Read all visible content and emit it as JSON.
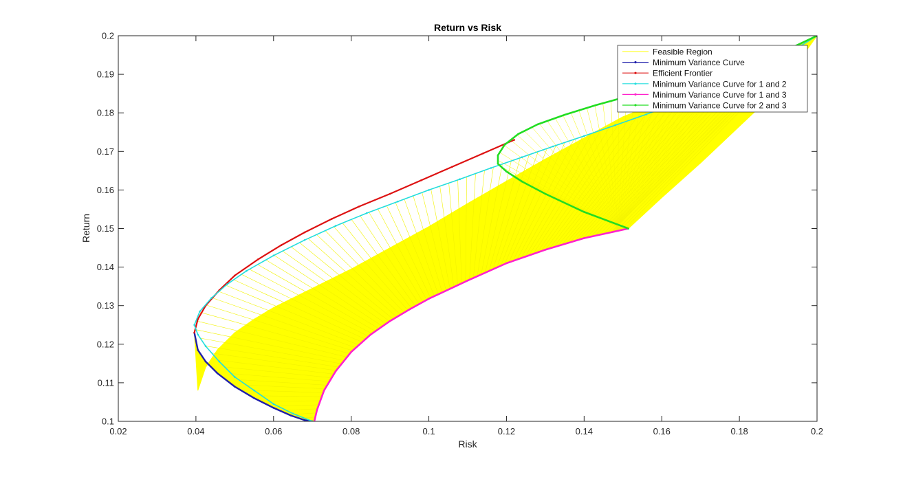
{
  "chart_data": {
    "type": "line",
    "title": "Return vs Risk",
    "xlabel": "Risk",
    "ylabel": "Return",
    "xlim": [
      0.02,
      0.2
    ],
    "ylim": [
      0.1,
      0.2
    ],
    "xticks": [
      "0.02",
      "0.04",
      "0.06",
      "0.08",
      "0.1",
      "0.12",
      "0.14",
      "0.16",
      "0.18",
      "0.2"
    ],
    "yticks": [
      "0.1",
      "0.11",
      "0.12",
      "0.13",
      "0.14",
      "0.15",
      "0.16",
      "0.17",
      "0.18",
      "0.19",
      "0.2"
    ],
    "grid": false,
    "legend_position": "top-right",
    "colors": {
      "feasible": "#ffff00",
      "min_var": "#1f1faa",
      "efficient": "#dd1111",
      "mv12": "#22dddd",
      "mv13": "#ff22cc",
      "mv23": "#22dd22"
    },
    "series": [
      {
        "name": "Feasible Region",
        "color": "#ffff00",
        "x": [
          0.0396,
          0.0405,
          0.0425,
          0.0455,
          0.05,
          0.055,
          0.06,
          0.0645,
          0.068,
          0.0705,
          0.0712,
          0.073,
          0.076,
          0.08,
          0.085,
          0.09,
          0.095,
          0.1,
          0.11,
          0.12,
          0.13,
          0.14,
          0.1514,
          0.16,
          0.17,
          0.18,
          0.19,
          0.2,
          0.19,
          0.18,
          0.17,
          0.16,
          0.15,
          0.14,
          0.13,
          0.12,
          0.11,
          0.1,
          0.09,
          0.08,
          0.07,
          0.06,
          0.055,
          0.05,
          0.0455,
          0.0425,
          0.0405,
          0.0396
        ],
        "y": [
          0.123,
          0.1185,
          0.1155,
          0.1125,
          0.109,
          0.106,
          0.1035,
          0.1015,
          0.1003,
          0.1,
          0.103,
          0.108,
          0.113,
          0.118,
          0.1225,
          0.126,
          0.129,
          0.1318,
          0.1365,
          0.141,
          0.1445,
          0.1475,
          0.15,
          0.158,
          0.167,
          0.1765,
          0.186,
          0.2,
          0.195,
          0.191,
          0.187,
          0.183,
          0.179,
          0.1735,
          0.168,
          0.1623,
          0.1565,
          0.1505,
          0.145,
          0.1395,
          0.1345,
          0.1295,
          0.1265,
          0.123,
          0.1185,
          0.114,
          0.108,
          0.123
        ]
      },
      {
        "name": "Minimum Variance Curve",
        "color": "#1f1faa",
        "x": [
          0.0396,
          0.0405,
          0.0425,
          0.0455,
          0.05,
          0.055,
          0.06,
          0.0645,
          0.068,
          0.07
        ],
        "y": [
          0.123,
          0.1185,
          0.1155,
          0.1125,
          0.109,
          0.106,
          0.1035,
          0.1015,
          0.1003,
          0.1
        ]
      },
      {
        "name": "Efficient Frontier",
        "color": "#dd1111",
        "x": [
          0.0396,
          0.0405,
          0.0425,
          0.046,
          0.05,
          0.056,
          0.062,
          0.068,
          0.075,
          0.082,
          0.09,
          0.098,
          0.106,
          0.114,
          0.122
        ],
        "y": [
          0.123,
          0.1265,
          0.13,
          0.134,
          0.1378,
          0.142,
          0.1457,
          0.149,
          0.1525,
          0.1557,
          0.159,
          0.1625,
          0.166,
          0.1695,
          0.173
        ]
      },
      {
        "name": "Minimum Variance Curve for 1 and 2",
        "color": "#22dddd",
        "x": [
          0.07,
          0.065,
          0.06,
          0.055,
          0.05,
          0.046,
          0.0425,
          0.0405,
          0.0396,
          0.041,
          0.044,
          0.048,
          0.053,
          0.06,
          0.068,
          0.076,
          0.084,
          0.092,
          0.1,
          0.108,
          0.116,
          0.124,
          0.132,
          0.14,
          0.148,
          0.156,
          0.164,
          0.172,
          0.18,
          0.188,
          0.196,
          0.2
        ],
        "y": [
          0.1,
          0.102,
          0.1045,
          0.108,
          0.1115,
          0.1155,
          0.1195,
          0.1225,
          0.125,
          0.1285,
          0.132,
          0.1355,
          0.139,
          0.143,
          0.147,
          0.1507,
          0.154,
          0.157,
          0.16,
          0.1628,
          0.1657,
          0.1685,
          0.1713,
          0.174,
          0.1768,
          0.1796,
          0.1826,
          0.1858,
          0.1892,
          0.193,
          0.1975,
          0.2
        ]
      },
      {
        "name": "Minimum Variance Curve for 1 and 3",
        "color": "#ff22cc",
        "x": [
          0.0705,
          0.0712,
          0.073,
          0.076,
          0.08,
          0.085,
          0.09,
          0.095,
          0.1,
          0.11,
          0.12,
          0.13,
          0.14,
          0.1514
        ],
        "y": [
          0.1,
          0.103,
          0.108,
          0.113,
          0.118,
          0.1225,
          0.126,
          0.129,
          0.1318,
          0.1365,
          0.141,
          0.1445,
          0.1475,
          0.15
        ]
      },
      {
        "name": "Minimum Variance Curve for 2 and 3",
        "color": "#22dd22",
        "x": [
          0.1514,
          0.14,
          0.13,
          0.124,
          0.12,
          0.1178,
          0.1178,
          0.1195,
          0.123,
          0.128,
          0.135,
          0.143,
          0.152,
          0.162,
          0.172,
          0.182,
          0.192,
          0.2
        ],
        "y": [
          0.15,
          0.1543,
          0.159,
          0.1622,
          0.1648,
          0.1668,
          0.169,
          0.1717,
          0.1745,
          0.177,
          0.1795,
          0.182,
          0.1845,
          0.187,
          0.1898,
          0.1928,
          0.1962,
          0.2
        ]
      }
    ]
  }
}
